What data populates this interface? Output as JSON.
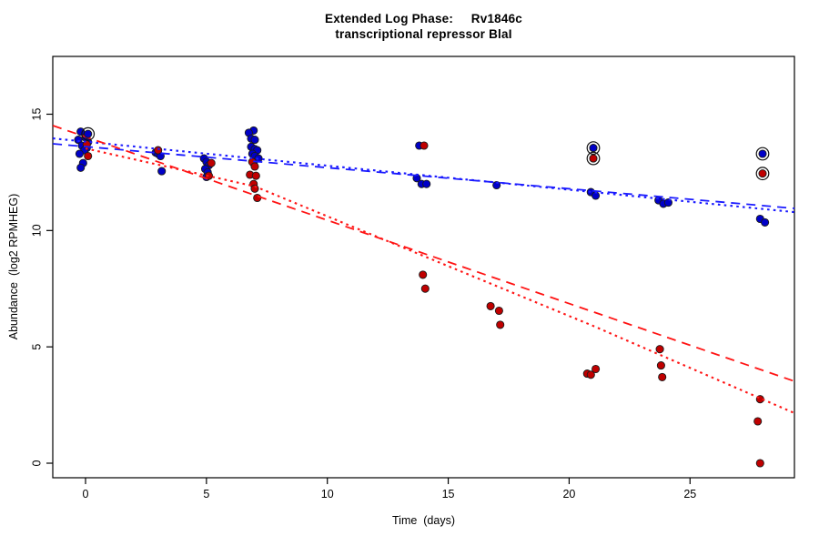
{
  "figure": {
    "title_line1": "Extended Log Phase:     Rv1846c",
    "title_line2": "transcriptional repressor BlaI",
    "xlabel": "Time  (days)",
    "ylabel": "Abundance  (log2 RPMHEG)"
  },
  "chart_data": {
    "type": "scatter",
    "title": "Extended Log Phase: Rv1846c",
    "subtitle": "transcriptional repressor BlaI",
    "xlabel": "Time (days)",
    "ylabel": "Abundance (log2 RPMHEG)",
    "xlim": [
      -1.35,
      29.32
    ],
    "ylim": [
      -0.63,
      17.48
    ],
    "xticks": [
      0,
      5,
      10,
      15,
      20,
      25
    ],
    "yticks": [
      0,
      5,
      10,
      15
    ],
    "grid": false,
    "legend": "none",
    "point_edge_color": "#1a1a1a",
    "circle_marker_color": "#111111",
    "series": [
      {
        "name": "blue-condition",
        "point_color": "#0000c8",
        "points": [
          [
            -0.2,
            14.25
          ],
          [
            0.0,
            14.0
          ],
          [
            -0.3,
            13.9
          ],
          [
            0.1,
            13.8
          ],
          [
            -0.15,
            13.65
          ],
          [
            0.05,
            13.55
          ],
          [
            -0.05,
            13.45
          ],
          [
            -0.25,
            13.3
          ],
          [
            -0.1,
            12.9
          ],
          [
            -0.2,
            12.7
          ],
          [
            2.9,
            13.35
          ],
          [
            3.0,
            13.3
          ],
          [
            3.1,
            13.2
          ],
          [
            3.15,
            12.55
          ],
          [
            4.9,
            13.1
          ],
          [
            5.0,
            12.95
          ],
          [
            5.1,
            12.8
          ],
          [
            4.95,
            12.65
          ],
          [
            5.05,
            12.5
          ],
          [
            5.0,
            12.3
          ],
          [
            6.95,
            14.3
          ],
          [
            6.75,
            14.2
          ],
          [
            6.85,
            13.95
          ],
          [
            7.0,
            13.9
          ],
          [
            6.85,
            13.6
          ],
          [
            7.0,
            13.5
          ],
          [
            7.1,
            13.45
          ],
          [
            6.9,
            13.3
          ],
          [
            7.0,
            13.2
          ],
          [
            7.15,
            13.1
          ],
          [
            6.95,
            12.9
          ],
          [
            13.8,
            13.65
          ],
          [
            13.7,
            12.25
          ],
          [
            13.9,
            12.0
          ],
          [
            14.1,
            12.0
          ],
          [
            17.0,
            11.95
          ],
          [
            20.9,
            11.65
          ],
          [
            21.1,
            11.5
          ],
          [
            23.7,
            11.3
          ],
          [
            23.9,
            11.15
          ],
          [
            24.1,
            11.2
          ],
          [
            27.9,
            10.5
          ],
          [
            28.1,
            10.35
          ]
        ],
        "circled_points": [
          [
            0.1,
            14.15
          ],
          [
            21.0,
            13.55
          ],
          [
            28.0,
            13.3
          ]
        ]
      },
      {
        "name": "red-condition",
        "point_color": "#c00000",
        "points": [
          [
            0.05,
            13.7
          ],
          [
            0.1,
            13.2
          ],
          [
            3.0,
            13.45
          ],
          [
            5.2,
            12.9
          ],
          [
            5.1,
            12.35
          ],
          [
            6.9,
            12.95
          ],
          [
            7.0,
            12.75
          ],
          [
            6.8,
            12.4
          ],
          [
            7.05,
            12.35
          ],
          [
            6.95,
            12.0
          ],
          [
            7.0,
            11.8
          ],
          [
            7.1,
            11.4
          ],
          [
            14.0,
            13.65
          ],
          [
            13.95,
            8.1
          ],
          [
            14.05,
            7.5
          ],
          [
            16.75,
            6.75
          ],
          [
            17.1,
            6.55
          ],
          [
            17.15,
            5.95
          ],
          [
            20.75,
            3.85
          ],
          [
            20.9,
            3.8
          ],
          [
            21.1,
            4.05
          ],
          [
            23.75,
            4.9
          ],
          [
            23.8,
            4.2
          ],
          [
            23.85,
            3.7
          ],
          [
            27.9,
            2.75
          ],
          [
            27.8,
            1.8
          ],
          [
            27.9,
            0.0
          ]
        ],
        "circled_points": [
          [
            21.0,
            13.1
          ],
          [
            28.0,
            12.45
          ]
        ]
      }
    ],
    "trend_lines": [
      {
        "series": "blue-condition",
        "style": "dashed",
        "color": "#1a1aff",
        "points": [
          [
            -1.35,
            13.73
          ],
          [
            29.32,
            10.95
          ]
        ]
      },
      {
        "series": "blue-condition",
        "style": "dotted",
        "color": "#1a1aff",
        "points": [
          [
            -1.35,
            13.96
          ],
          [
            29.32,
            10.79
          ]
        ]
      },
      {
        "series": "red-condition",
        "style": "dashed",
        "color": "#ff1414",
        "points": [
          [
            -1.35,
            14.51
          ],
          [
            29.32,
            3.52
          ]
        ]
      },
      {
        "series": "red-condition",
        "style": "dotted",
        "color": "#ff1414",
        "points": [
          [
            0.0,
            13.53
          ],
          [
            7.0,
            11.9
          ],
          [
            14.0,
            8.9
          ],
          [
            21.0,
            5.9
          ],
          [
            29.32,
            2.15
          ]
        ]
      }
    ]
  }
}
